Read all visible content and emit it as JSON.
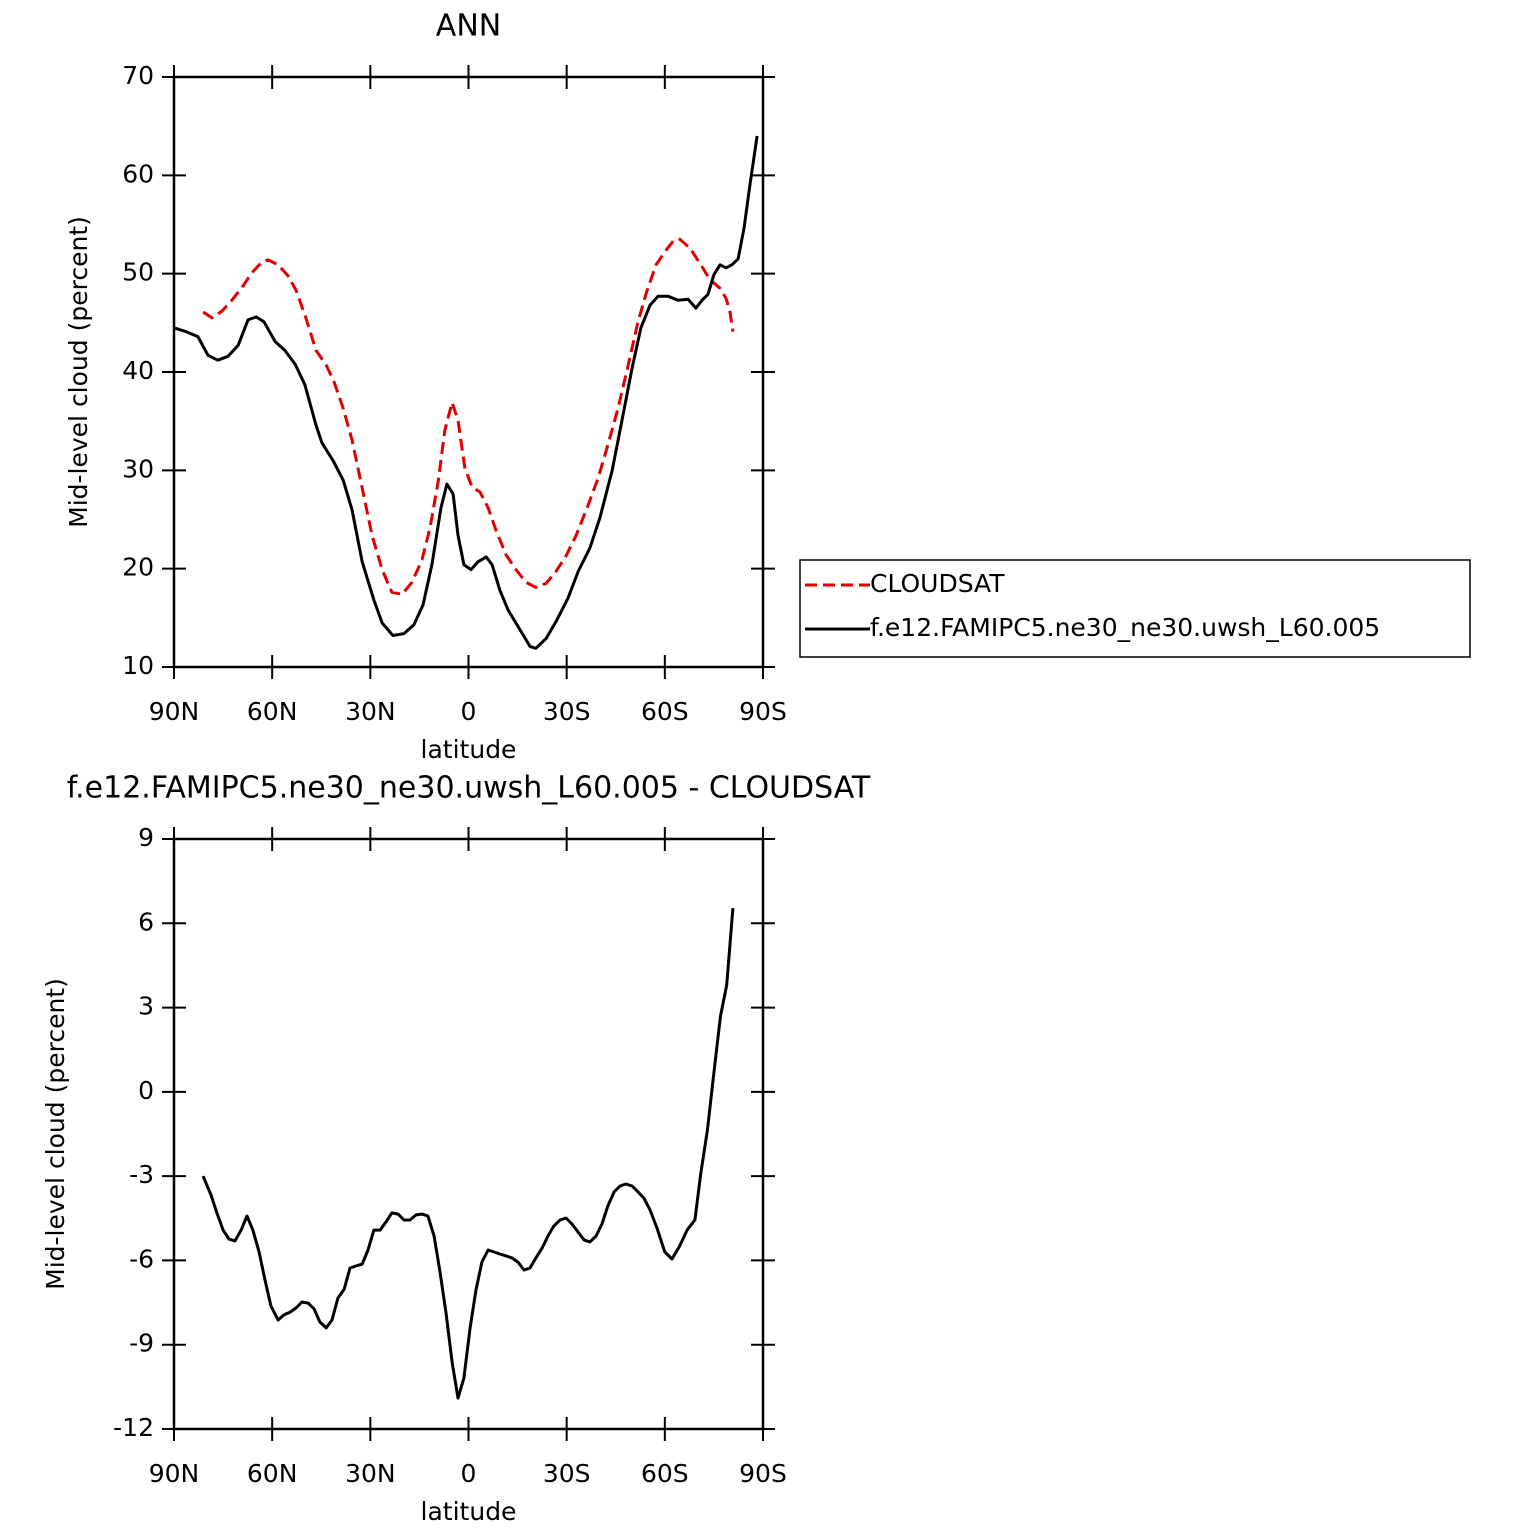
{
  "chart_data": [
    {
      "type": "line",
      "title": "ANN",
      "xlabel": "latitude",
      "ylabel": "Mid-level cloud (percent)",
      "xlim": [
        90,
        -90
      ],
      "xticks": [
        {
          "value": 90,
          "label": "90N"
        },
        {
          "value": 60,
          "label": "60N"
        },
        {
          "value": 30,
          "label": "30N"
        },
        0,
        {
          "value": -30,
          "label": "30S"
        },
        {
          "value": -60,
          "label": "60S"
        },
        {
          "value": -90,
          "label": "90S"
        }
      ],
      "ylim": [
        10,
        70
      ],
      "yticks": [
        10,
        20,
        30,
        40,
        50,
        60,
        70
      ],
      "legend": "right",
      "series": [
        {
          "name": "CLOUDSAT",
          "color": "#e00000",
          "style": "dashed",
          "x": [
            81.1,
            78.4,
            75.3,
            72.3,
            69.2,
            66.2,
            63.1,
            61.3,
            58.2,
            55.2,
            52.7,
            49.7,
            46.6,
            43.5,
            41.1,
            38.3,
            35.6,
            32.5,
            29.5,
            26.4,
            23.4,
            20.3,
            17.3,
            14.2,
            11.8,
            9.3,
            7.2,
            5.0,
            3.2,
            1.1,
            -1.1,
            -3.5,
            -6.0,
            -8.4,
            -11.5,
            -14.5,
            -17.6,
            -20.6,
            -23.7,
            -26.7,
            -29.8,
            -32.9,
            -36.5,
            -39.6,
            -42.6,
            -45.7,
            -48.8,
            -51.8,
            -54.3,
            -57.3,
            -60.4,
            -62.8,
            -64.6,
            -67.7,
            -70.8,
            -73.8,
            -76.9,
            -78.7,
            -79.9,
            -80.8
          ],
          "values": [
            46.1,
            45.5,
            46.2,
            47.3,
            48.6,
            50.1,
            51.2,
            51.4,
            50.9,
            49.8,
            48.3,
            45.5,
            42.2,
            40.7,
            39.0,
            36.3,
            33.1,
            28.2,
            23.4,
            19.9,
            17.6,
            17.4,
            18.6,
            20.9,
            24.1,
            28.8,
            34.1,
            36.9,
            35.1,
            30.2,
            28.3,
            27.8,
            26.2,
            23.9,
            21.4,
            19.9,
            18.6,
            18.1,
            18.5,
            19.7,
            21.3,
            23.4,
            26.4,
            29.2,
            32.6,
            36.3,
            40.7,
            45.1,
            48.0,
            50.9,
            52.4,
            53.4,
            53.5,
            52.6,
            51.0,
            49.4,
            48.5,
            47.5,
            46.1,
            44.1
          ]
        },
        {
          "name": "f.e12.FAMIPC5.ne30_ne30.uwsh_L60.005",
          "color": "#000000",
          "style": "solid",
          "x": [
            90,
            86.3,
            82.7,
            79.6,
            76.6,
            73.5,
            70.4,
            67.4,
            64.9,
            62.5,
            59.1,
            56.1,
            53.0,
            50.0,
            46.6,
            44.8,
            41.4,
            38.3,
            35.6,
            32.5,
            28.9,
            26.4,
            23.1,
            19.7,
            16.7,
            13.9,
            11.2,
            8.4,
            6.6,
            4.7,
            3.2,
            1.4,
            -0.8,
            -2.9,
            -5.4,
            -7.2,
            -9.6,
            -12.1,
            -15.7,
            -18.8,
            -20.6,
            -23.7,
            -26.7,
            -30.4,
            -33.5,
            -37.1,
            -40.2,
            -43.9,
            -46.9,
            -50.0,
            -52.7,
            -55.5,
            -57.9,
            -61.0,
            -64.0,
            -67.1,
            -69.5,
            -71.4,
            -73.2,
            -75.0,
            -76.9,
            -78.7,
            -80.5,
            -82.4,
            -84.2,
            -86.0,
            -88.2
          ],
          "values": [
            44.5,
            44.1,
            43.6,
            41.7,
            41.2,
            41.6,
            42.7,
            45.3,
            45.6,
            45.1,
            43.1,
            42.2,
            40.8,
            38.7,
            34.6,
            32.8,
            31.0,
            29.0,
            26.0,
            20.7,
            16.8,
            14.5,
            13.2,
            13.4,
            14.3,
            16.3,
            20.4,
            26.2,
            28.6,
            27.6,
            23.4,
            20.4,
            19.9,
            20.7,
            21.2,
            20.4,
            17.8,
            15.8,
            13.8,
            12.1,
            11.9,
            12.9,
            14.6,
            17.0,
            19.7,
            22.1,
            25.2,
            30.0,
            35.1,
            40.4,
            44.5,
            46.8,
            47.7,
            47.7,
            47.3,
            47.4,
            46.5,
            47.3,
            47.9,
            49.9,
            50.9,
            50.6,
            50.9,
            51.5,
            54.6,
            59.0,
            64.0
          ]
        }
      ]
    },
    {
      "type": "line",
      "title": "f.e12.FAMIPC5.ne30_ne30.uwsh_L60.005 - CLOUDSAT",
      "xlabel": "latitude",
      "ylabel": "Mid-level cloud (percent)",
      "xlim": [
        90,
        -90
      ],
      "xticks": [
        {
          "value": 90,
          "label": "90N"
        },
        {
          "value": 60,
          "label": "60N"
        },
        {
          "value": 30,
          "label": "30N"
        },
        0,
        {
          "value": -30,
          "label": "30S"
        },
        {
          "value": -60,
          "label": "60S"
        },
        {
          "value": -90,
          "label": "90S"
        }
      ],
      "ylim": [
        -12,
        9
      ],
      "yticks": [
        -12,
        -9,
        -6,
        -3,
        0,
        3,
        6,
        9
      ],
      "series": [
        {
          "color": "#000000",
          "style": "solid",
          "x": [
            81.1,
            78.7,
            76.9,
            75.0,
            73.2,
            71.4,
            69.5,
            67.7,
            65.9,
            64.0,
            62.2,
            60.4,
            58.2,
            56.4,
            54.5,
            52.7,
            50.9,
            49.0,
            47.2,
            45.4,
            43.5,
            41.7,
            39.9,
            38.0,
            36.2,
            34.4,
            32.5,
            30.7,
            28.9,
            27.0,
            25.2,
            23.4,
            21.5,
            19.7,
            17.9,
            16.0,
            14.2,
            12.4,
            10.5,
            8.7,
            6.9,
            5.0,
            3.2,
            1.4,
            -0.5,
            -2.3,
            -4.1,
            -6.0,
            -7.8,
            -9.6,
            -11.5,
            -13.3,
            -15.1,
            -17.0,
            -18.8,
            -20.6,
            -22.5,
            -24.3,
            -26.1,
            -28.0,
            -29.8,
            -31.6,
            -33.5,
            -35.3,
            -37.1,
            -39.0,
            -40.8,
            -42.6,
            -44.5,
            -46.3,
            -48.1,
            -50.0,
            -51.8,
            -53.6,
            -55.5,
            -57.6,
            -60.0,
            -62.2,
            -64.5,
            -66.8,
            -69.2,
            -71.0,
            -73.0,
            -75.2,
            -77.0,
            -78.9,
            -80.8
          ],
          "values": [
            -3.0,
            -3.67,
            -4.31,
            -4.92,
            -5.24,
            -5.31,
            -4.92,
            -4.42,
            -4.92,
            -5.7,
            -6.7,
            -7.62,
            -8.12,
            -7.94,
            -7.84,
            -7.69,
            -7.48,
            -7.52,
            -7.73,
            -8.19,
            -8.4,
            -8.12,
            -7.34,
            -7.02,
            -6.27,
            -6.2,
            -6.13,
            -5.63,
            -4.92,
            -4.92,
            -4.63,
            -4.31,
            -4.35,
            -4.56,
            -4.56,
            -4.38,
            -4.35,
            -4.42,
            -5.13,
            -6.41,
            -7.84,
            -9.62,
            -10.9,
            -10.19,
            -8.4,
            -7.05,
            -6.06,
            -5.63,
            -5.7,
            -5.77,
            -5.84,
            -5.91,
            -6.06,
            -6.34,
            -6.27,
            -5.91,
            -5.56,
            -5.13,
            -4.77,
            -4.56,
            -4.49,
            -4.7,
            -4.99,
            -5.27,
            -5.34,
            -5.13,
            -4.7,
            -4.06,
            -3.56,
            -3.35,
            -3.28,
            -3.35,
            -3.56,
            -3.78,
            -4.21,
            -4.85,
            -5.7,
            -5.95,
            -5.49,
            -4.92,
            -4.56,
            -2.9,
            -1.36,
            0.9,
            2.7,
            3.8,
            6.54
          ]
        }
      ]
    }
  ]
}
